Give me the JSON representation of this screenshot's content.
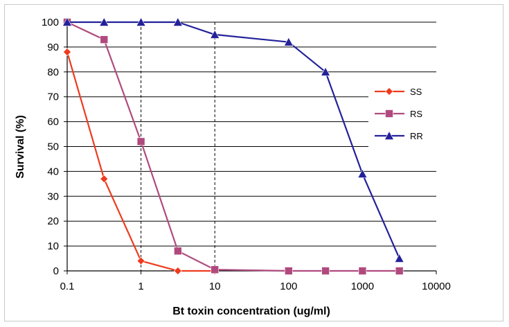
{
  "chart_data": {
    "type": "line",
    "title": "",
    "xlabel": "Bt toxin concentration (ug/ml)",
    "ylabel": "Survival (%)",
    "x_scale": "log",
    "xlim": [
      0.1,
      10000
    ],
    "ylim": [
      0,
      100
    ],
    "x_tick_labels": [
      "0.1",
      "1",
      "10",
      "100",
      "1000",
      "10000"
    ],
    "y_tick_labels": [
      "0",
      "10",
      "20",
      "30",
      "40",
      "50",
      "60",
      "70",
      "80",
      "90",
      "100"
    ],
    "grid": "horizontal",
    "reference_lines_x": [
      1,
      10
    ],
    "legend_position": "right",
    "series": [
      {
        "name": "SS",
        "color": "#ee3a1e",
        "marker": "diamond",
        "points": [
          [
            0.1,
            88
          ],
          [
            0.316,
            37
          ],
          [
            1,
            4
          ],
          [
            3.16,
            0
          ],
          [
            10,
            0
          ]
        ]
      },
      {
        "name": "RS",
        "color": "#b04a7e",
        "marker": "square",
        "points": [
          [
            0.1,
            100
          ],
          [
            0.316,
            93
          ],
          [
            1,
            52
          ],
          [
            3.16,
            8
          ],
          [
            10,
            0.5
          ],
          [
            100,
            0
          ],
          [
            316,
            0
          ],
          [
            1000,
            0
          ],
          [
            3160,
            0
          ]
        ]
      },
      {
        "name": "RR",
        "color": "#23219a",
        "marker": "triangle",
        "points": [
          [
            0.1,
            100
          ],
          [
            0.316,
            100
          ],
          [
            1,
            100
          ],
          [
            3.16,
            100
          ],
          [
            10,
            95
          ],
          [
            100,
            92
          ],
          [
            316,
            80
          ],
          [
            1000,
            39
          ],
          [
            3160,
            5
          ]
        ]
      }
    ]
  }
}
